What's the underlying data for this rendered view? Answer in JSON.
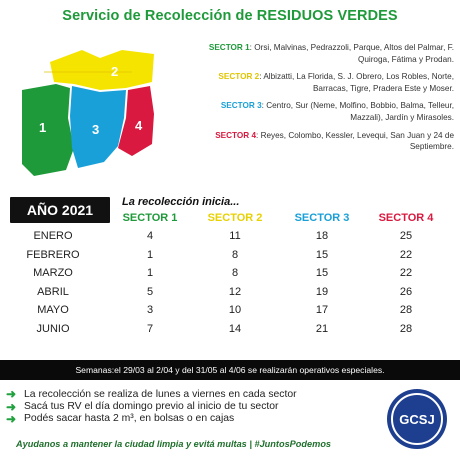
{
  "title": "Servicio de Recolección de RESIDUOS VERDES",
  "map": {
    "labels": [
      "1",
      "2",
      "3",
      "4"
    ],
    "colors": [
      "#1f9a3a",
      "#f4e400",
      "#1aa0d8",
      "#d9193f"
    ]
  },
  "sectors": [
    {
      "name": "SECTOR 1",
      "num": "1",
      "color": "#1f9a3a",
      "text": ": Orsi, Malvinas, Pedrazzoli, Parque, Altos del Palmar, F. Quiroga, Fátima y Prodan."
    },
    {
      "name": "SECTOR 2",
      "num": "2",
      "color": "#e0c500",
      "text": ": Albizatti, La Florida, S. J. Obrero, Los Robles, Norte, Barracas, Tigre, Pradera Este y Moser."
    },
    {
      "name": "SECTOR 3",
      "num": "3",
      "color": "#1aa0d8",
      "text": ": Centro, Sur (Neme, Molfino, Bobbio, Balma, Telleur, Mazzali), Jardín y Mirasoles."
    },
    {
      "name": "SECTOR 4",
      "num": "4",
      "color": "#d9193f",
      "text": ": Reyes, Colombo, Kessler, Levequi, San Juan y 24 de Septiembre."
    }
  ],
  "year": "AÑO 2021",
  "inicia": "La recolección inicia...",
  "columns": [
    {
      "label": "SECTOR 1",
      "color": "#1f9a3a"
    },
    {
      "label": "SECTOR 2",
      "color": "#e8d100"
    },
    {
      "label": "SECTOR 3",
      "color": "#1aa0d8"
    },
    {
      "label": "SECTOR 4",
      "color": "#d9193f"
    }
  ],
  "rows": [
    {
      "month": "ENERO",
      "values": [
        "4",
        "11",
        "18",
        "25"
      ]
    },
    {
      "month": "FEBRERO",
      "values": [
        "1",
        "8",
        "15",
        "22"
      ]
    },
    {
      "month": "MARZO",
      "values": [
        "1",
        "8",
        "15",
        "22"
      ]
    },
    {
      "month": "ABRIL",
      "values": [
        "5",
        "12",
        "19",
        "26"
      ]
    },
    {
      "month": "MAYO",
      "values": [
        "3",
        "10",
        "17",
        "28"
      ]
    },
    {
      "month": "JUNIO",
      "values": [
        "7",
        "14",
        "21",
        "28"
      ]
    }
  ],
  "notice": "Semanas:el 29/03 al 2/04 y del 31/05 al 4/06 se realizarán operativos especiales.",
  "bullets": [
    "La recolección se realiza de lunes a viernes en cada sector",
    "Sacá tus RV el día domingo previo al inicio de tu sector",
    "Podés sacar hasta 2 m³, en bolsas o en cajas"
  ],
  "footer": "Ayudanos a mantener la ciudad limpia y evitá multas | #JuntosPodemos",
  "logo": "GCSJ"
}
